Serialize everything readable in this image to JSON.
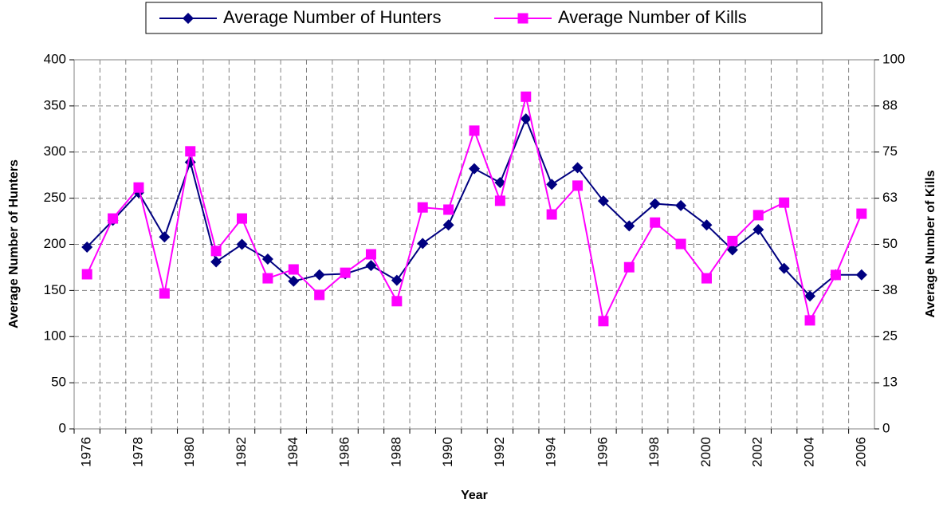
{
  "chart_data": {
    "type": "line",
    "x_label": "Year",
    "y_label": "Average Number of Hunters",
    "y2_label": "Average Number of Kills",
    "categories": [
      "1976",
      null,
      "1978",
      null,
      "1980",
      null,
      "1982",
      null,
      "1984",
      null,
      "1986",
      null,
      "1988",
      null,
      "1990",
      null,
      "1992",
      null,
      "1994",
      null,
      "1996",
      null,
      "1998",
      null,
      "2000",
      null,
      "2002",
      null,
      "2004",
      null,
      "2006"
    ],
    "ylim": [
      0,
      400
    ],
    "yticks": [
      0,
      50,
      100,
      150,
      200,
      250,
      300,
      350,
      400
    ],
    "y2lim": [
      0,
      100
    ],
    "y2ticks": [
      0,
      {
        "value": 12.5,
        "label": "13"
      },
      25,
      {
        "value": 37.5,
        "label": "38"
      },
      50,
      {
        "value": 62.5,
        "label": "63"
      },
      75,
      {
        "value": 87.5,
        "label": "88"
      },
      100
    ],
    "grid": true,
    "legend": "top",
    "series": [
      {
        "name": "Average Number of Hunters",
        "color": "#000080",
        "marker": "diamond",
        "values": [
          197,
          226,
          256,
          208,
          289,
          181,
          200,
          184,
          160,
          167,
          168,
          177,
          161,
          201,
          221,
          282,
          267,
          336,
          265,
          283,
          247,
          220,
          244,
          242,
          221,
          194,
          216,
          174,
          144,
          167,
          167
        ]
      },
      {
        "name": "Average Number of Kills",
        "color": "#ff00ff",
        "marker": "square",
        "axis": "y2",
        "values": [
          41.9,
          57,
          65.4,
          36.7,
          75.2,
          48.2,
          57,
          40.8,
          43.2,
          36.3,
          42.3,
          47.3,
          34.6,
          60,
          59.4,
          80.8,
          61.8,
          90,
          58.1,
          65.9,
          29.2,
          43.8,
          55.9,
          50.1,
          40.8,
          50.9,
          57.9,
          61.3,
          29.4,
          41.7,
          58.3
        ]
      }
    ]
  }
}
